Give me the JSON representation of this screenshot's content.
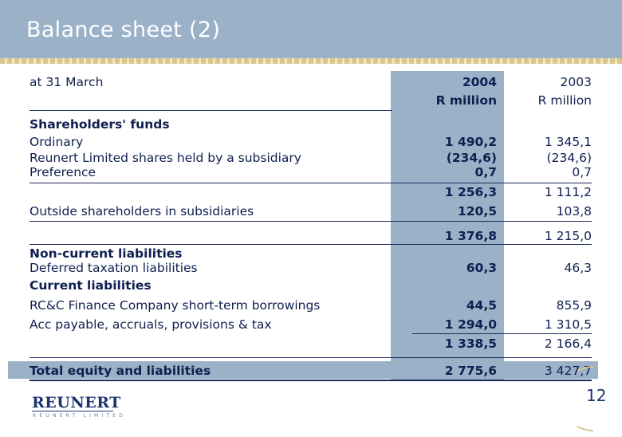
{
  "title": "Balance sheet (2)",
  "date_label": "at 31 March",
  "columns": {
    "y2004": {
      "year": "2004",
      "unit": "R million"
    },
    "y2003": {
      "year": "2003",
      "unit": "R million"
    }
  },
  "rows": {
    "shareholders_funds": "Shareholders' funds",
    "ordinary": {
      "label": "Ordinary",
      "v2004": "1 490,2",
      "v2003": "1 345,1"
    },
    "subsidiary_shares": {
      "label": "Reunert Limited shares held by a subsidiary",
      "v2004": "(234,6)",
      "v2003": "(234,6)"
    },
    "preference": {
      "label": "Preference",
      "v2004": "0,7",
      "v2003": "0,7"
    },
    "subtotal1": {
      "v2004": "1 256,3",
      "v2003": "1 111,2"
    },
    "outside_shareholders": {
      "label": "Outside shareholders in subsidiaries",
      "v2004": "120,5",
      "v2003": "103,8"
    },
    "subtotal2": {
      "v2004": "1 376,8",
      "v2003": "1 215,0"
    },
    "non_current": "Non-current liabilities",
    "deferred_tax": {
      "label": "Deferred taxation liabilities",
      "v2004": "60,3",
      "v2003": "46,3"
    },
    "current": "Current liabilities",
    "rcc_finance": {
      "label": "RC&C Finance Company short-term borrowings",
      "v2004": "44,5",
      "v2003": "855,9"
    },
    "acc_payable": {
      "label": "Acc payable, accruals, provisions & tax",
      "v2004": "1 294,0",
      "v2003": "1 310,5"
    },
    "subtotal3": {
      "v2004": "1 338,5",
      "v2003": "2 166,4"
    },
    "total": {
      "label": "Total equity and liabilities",
      "v2004": "2 775,6",
      "v2003": "3 427,7"
    }
  },
  "footer": {
    "logo": "REUNERT",
    "logo_sub": "REUNERT LIMITED",
    "page_number": "12"
  },
  "colors": {
    "header_bg": "#9ab1c8",
    "text": "#0f1f4f",
    "accent_stripe": "#d9c68e"
  }
}
